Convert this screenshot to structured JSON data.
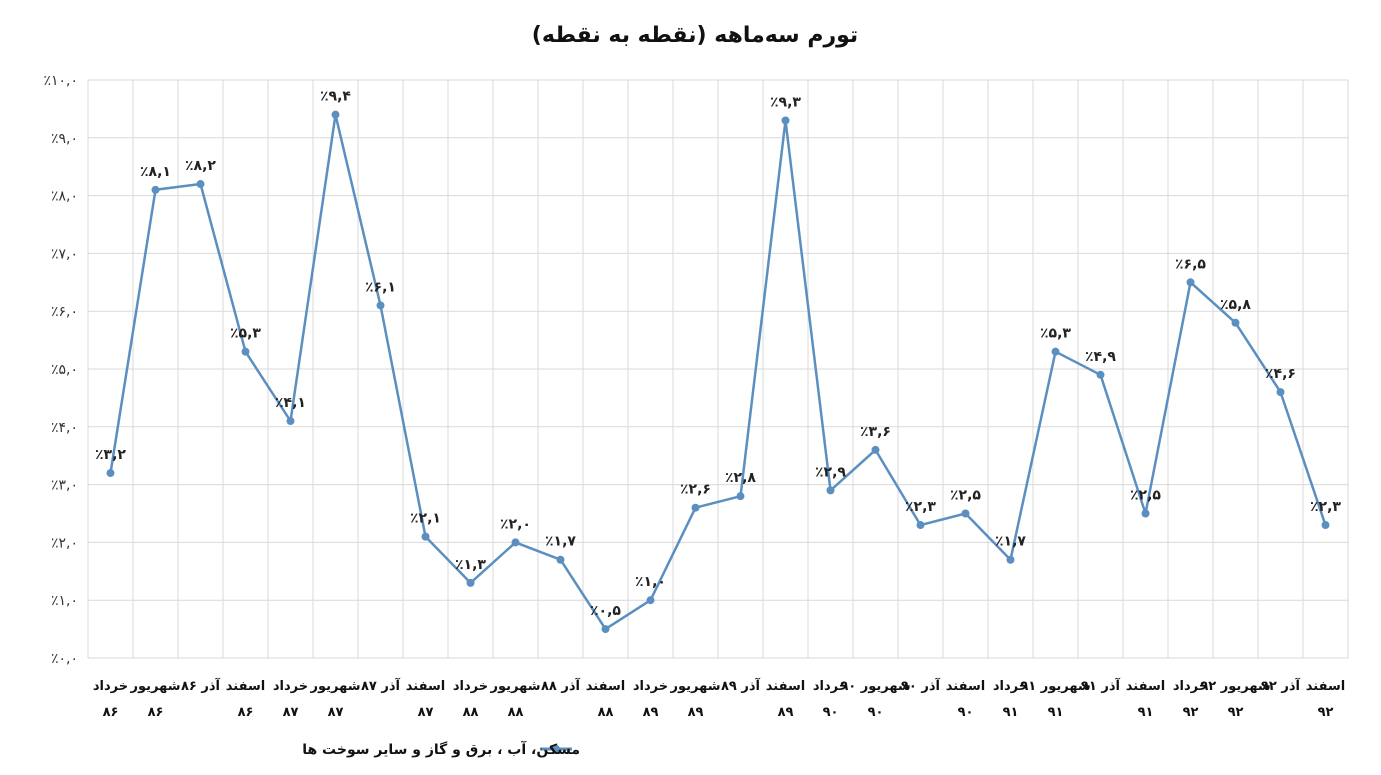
{
  "chart_data": {
    "type": "line",
    "title": "تورم سه‌ماهه (نقطه به نقطه)",
    "xlabel": "",
    "ylabel": "",
    "ylim": [
      0,
      10
    ],
    "y_ticks": [
      "٪۰,۰",
      "٪۱,۰",
      "٪۲,۰",
      "٪۳,۰",
      "٪۴,۰",
      "٪۵,۰",
      "٪۶,۰",
      "٪۷,۰",
      "٪۸,۰",
      "٪۹,۰",
      "٪۱۰,۰"
    ],
    "grid": true,
    "legend_position": "bottom-center",
    "series_color": "#5b8fc0",
    "categories": [
      [
        "خرداد",
        "۸۶"
      ],
      [
        "شهریور",
        "۸۶"
      ],
      [
        "آذر ۸۶",
        ""
      ],
      [
        "اسفند",
        "۸۶"
      ],
      [
        "خرداد",
        "۸۷"
      ],
      [
        "شهریور",
        "۸۷"
      ],
      [
        "آذر ۸۷",
        ""
      ],
      [
        "اسفند",
        "۸۷"
      ],
      [
        "خرداد",
        "۸۸"
      ],
      [
        "شهریور",
        "۸۸"
      ],
      [
        "آذر ۸۸",
        ""
      ],
      [
        "اسفند",
        "۸۸"
      ],
      [
        "خرداد",
        "۸۹"
      ],
      [
        "شهریور",
        "۸۹"
      ],
      [
        "آذر ۸۹",
        ""
      ],
      [
        "اسفند",
        "۸۹"
      ],
      [
        "خرداد",
        "۹۰"
      ],
      [
        "شهریور ۹۰",
        "۹۰"
      ],
      [
        "آذر ۹۰",
        ""
      ],
      [
        "اسفند",
        "۹۰"
      ],
      [
        "خرداد",
        "۹۱"
      ],
      [
        "شهریور ۹۱",
        "۹۱"
      ],
      [
        "آذر ۹۱",
        ""
      ],
      [
        "اسفند",
        "۹۱"
      ],
      [
        "خرداد",
        "۹۲"
      ],
      [
        "شهریور ۹۲",
        "۹۲"
      ],
      [
        "آذر ۹۲",
        ""
      ],
      [
        "اسفند",
        "۹۲"
      ]
    ],
    "series": [
      {
        "name": "مسکن، آب ، برق و گاز و سایر سوخت ها",
        "values": [
          3.2,
          8.1,
          8.2,
          5.3,
          4.1,
          9.4,
          6.1,
          2.1,
          1.3,
          2.0,
          1.7,
          0.5,
          1.0,
          2.6,
          2.8,
          9.3,
          2.9,
          3.6,
          2.3,
          2.5,
          1.7,
          5.3,
          4.9,
          2.5,
          6.5,
          5.8,
          4.6,
          2.3
        ],
        "labels": [
          "٪۳,۲",
          "٪۸,۱",
          "٪۸,۲",
          "٪۵,۳",
          "٪۴,۱",
          "٪۹,۴",
          "٪۶,۱",
          "٪۲,۱",
          "٪۱,۳",
          "٪۲,۰",
          "٪۱,۷",
          "٪۰,۵",
          "٪۱,۰",
          "٪۲,۶",
          "٪۲,۸",
          "٪۹,۳",
          "٪۲,۹",
          "٪۳,۶",
          "٪۲,۳",
          "٪۲,۵",
          "٪۱,۷",
          "٪۵,۳",
          "٪۴,۹",
          "٪۲,۵",
          "٪۶,۵",
          "٪۵,۸",
          "٪۴,۶",
          "٪۲,۳"
        ]
      }
    ]
  }
}
